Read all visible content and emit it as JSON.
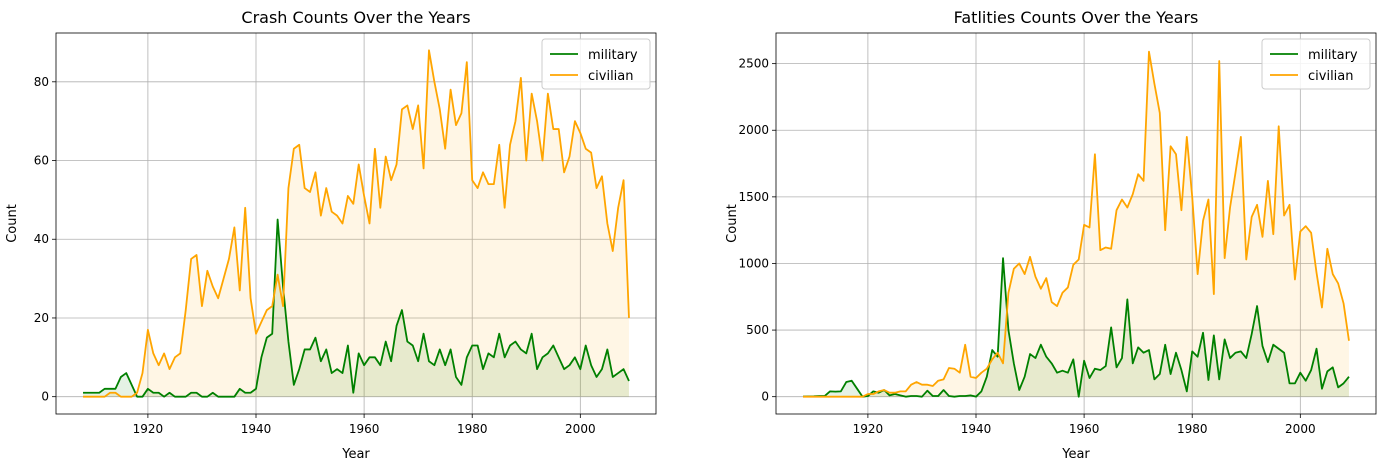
{
  "colors": {
    "military": "#008000",
    "civilian": "#FFA500",
    "grid": "#b0b0b0"
  },
  "chart_data": [
    {
      "type": "line",
      "title": "Crash Counts Over the Years",
      "xlabel": "Year",
      "ylabel": "Count",
      "xlim": [
        1903,
        2014
      ],
      "ylim": [
        -4.4,
        92.4
      ],
      "xticks": [
        1920,
        1940,
        1960,
        1980,
        2000
      ],
      "yticks": [
        0,
        20,
        40,
        60,
        80
      ],
      "grid": true,
      "fill_under": true,
      "legend_position": "top-right",
      "legend": [
        "military",
        "civilian"
      ],
      "x": [
        1908,
        1909,
        1910,
        1911,
        1912,
        1913,
        1914,
        1915,
        1916,
        1917,
        1918,
        1919,
        1920,
        1921,
        1922,
        1923,
        1924,
        1925,
        1926,
        1927,
        1928,
        1929,
        1930,
        1931,
        1932,
        1933,
        1934,
        1935,
        1936,
        1937,
        1938,
        1939,
        1940,
        1941,
        1942,
        1943,
        1944,
        1945,
        1946,
        1947,
        1948,
        1949,
        1950,
        1951,
        1952,
        1953,
        1954,
        1955,
        1956,
        1957,
        1958,
        1959,
        1960,
        1961,
        1962,
        1963,
        1964,
        1965,
        1966,
        1967,
        1968,
        1969,
        1970,
        1971,
        1972,
        1973,
        1974,
        1975,
        1976,
        1977,
        1978,
        1979,
        1980,
        1981,
        1982,
        1983,
        1984,
        1985,
        1986,
        1987,
        1988,
        1989,
        1990,
        1991,
        1992,
        1993,
        1994,
        1995,
        1996,
        1997,
        1998,
        1999,
        2000,
        2001,
        2002,
        2003,
        2004,
        2005,
        2006,
        2007,
        2008,
        2009
      ],
      "series": [
        {
          "name": "military",
          "values": [
            1,
            1,
            1,
            1,
            2,
            2,
            2,
            5,
            6,
            3,
            0,
            0,
            2,
            1,
            1,
            0,
            1,
            0,
            0,
            0,
            1,
            1,
            0,
            0,
            1,
            0,
            0,
            0,
            0,
            2,
            1,
            1,
            2,
            10,
            15,
            16,
            45,
            28,
            14,
            3,
            7,
            12,
            12,
            15,
            9,
            12,
            6,
            7,
            6,
            13,
            1,
            11,
            8,
            10,
            10,
            8,
            14,
            9,
            18,
            22,
            14,
            13,
            9,
            16,
            9,
            8,
            12,
            8,
            12,
            5,
            3,
            10,
            13,
            13,
            7,
            11,
            10,
            16,
            10,
            13,
            14,
            12,
            11,
            16,
            7,
            10,
            11,
            13,
            10,
            7,
            8,
            10,
            7,
            13,
            8,
            5,
            7,
            12,
            5,
            6,
            7,
            4
          ]
        },
        {
          "name": "civilian",
          "values": [
            0,
            0,
            0,
            0,
            0,
            1,
            1,
            0,
            0,
            0,
            1,
            6,
            17,
            11,
            8,
            11,
            7,
            10,
            11,
            22,
            35,
            36,
            23,
            32,
            28,
            25,
            30,
            35,
            43,
            27,
            48,
            25,
            16,
            19,
            22,
            23,
            31,
            23,
            53,
            63,
            64,
            53,
            52,
            57,
            46,
            53,
            47,
            46,
            44,
            51,
            49,
            59,
            51,
            44,
            63,
            48,
            61,
            55,
            59,
            73,
            74,
            68,
            74,
            58,
            88,
            80,
            73,
            63,
            78,
            69,
            72,
            85,
            55,
            53,
            57,
            54,
            54,
            64,
            48,
            64,
            70,
            81,
            60,
            77,
            70,
            60,
            77,
            68,
            68,
            57,
            61,
            70,
            67,
            63,
            62,
            53,
            56,
            44,
            37,
            48,
            55,
            20
          ]
        }
      ]
    },
    {
      "type": "line",
      "title": "Fatlities Counts Over the Years",
      "xlabel": "Year",
      "ylabel": "Count",
      "xlim": [
        1903,
        2014
      ],
      "ylim": [
        -130,
        2730
      ],
      "xticks": [
        1920,
        1940,
        1960,
        1980,
        2000
      ],
      "yticks": [
        0,
        500,
        1000,
        1500,
        2000,
        2500
      ],
      "grid": true,
      "fill_under": true,
      "legend_position": "top-right",
      "legend": [
        "military",
        "civilian"
      ],
      "x": [
        1908,
        1909,
        1910,
        1911,
        1912,
        1913,
        1914,
        1915,
        1916,
        1917,
        1918,
        1919,
        1920,
        1921,
        1922,
        1923,
        1924,
        1925,
        1926,
        1927,
        1928,
        1929,
        1930,
        1931,
        1932,
        1933,
        1934,
        1935,
        1936,
        1937,
        1938,
        1939,
        1940,
        1941,
        1942,
        1943,
        1944,
        1945,
        1946,
        1947,
        1948,
        1949,
        1950,
        1951,
        1952,
        1953,
        1954,
        1955,
        1956,
        1957,
        1958,
        1959,
        1960,
        1961,
        1962,
        1963,
        1964,
        1965,
        1966,
        1967,
        1968,
        1969,
        1970,
        1971,
        1972,
        1973,
        1974,
        1975,
        1976,
        1977,
        1978,
        1979,
        1980,
        1981,
        1982,
        1983,
        1984,
        1985,
        1986,
        1987,
        1988,
        1989,
        1990,
        1991,
        1992,
        1993,
        1994,
        1995,
        1996,
        1997,
        1998,
        1999,
        2000,
        2001,
        2002,
        2003,
        2004,
        2005,
        2006,
        2007,
        2008,
        2009
      ],
      "series": [
        {
          "name": "military",
          "values": [
            1,
            2,
            3,
            5,
            5,
            40,
            38,
            40,
            110,
            120,
            60,
            0,
            5,
            40,
            30,
            50,
            10,
            20,
            10,
            0,
            5,
            5,
            0,
            45,
            5,
            5,
            50,
            5,
            0,
            5,
            5,
            10,
            0,
            40,
            150,
            350,
            300,
            1040,
            500,
            250,
            50,
            150,
            320,
            290,
            390,
            300,
            250,
            180,
            195,
            180,
            280,
            0,
            270,
            140,
            210,
            200,
            230,
            520,
            220,
            290,
            730,
            250,
            370,
            330,
            350,
            130,
            170,
            390,
            170,
            330,
            200,
            40,
            340,
            300,
            480,
            125,
            460,
            130,
            430,
            290,
            330,
            340,
            290,
            470,
            680,
            380,
            260,
            390,
            360,
            330,
            100,
            100,
            180,
            120,
            200,
            360,
            60,
            190,
            220,
            70,
            100,
            150
          ]
        },
        {
          "name": "civilian",
          "values": [
            0,
            0,
            0,
            0,
            0,
            0,
            0,
            0,
            0,
            0,
            0,
            0,
            20,
            20,
            40,
            50,
            30,
            30,
            40,
            40,
            90,
            110,
            90,
            90,
            80,
            120,
            130,
            215,
            210,
            180,
            390,
            150,
            140,
            180,
            210,
            280,
            330,
            250,
            780,
            960,
            1000,
            920,
            1050,
            900,
            810,
            890,
            710,
            680,
            780,
            820,
            990,
            1030,
            1290,
            1270,
            1820,
            1100,
            1120,
            1110,
            1400,
            1480,
            1420,
            1520,
            1670,
            1620,
            2590,
            2350,
            2130,
            1250,
            1880,
            1820,
            1400,
            1950,
            1500,
            920,
            1320,
            1480,
            770,
            2520,
            1040,
            1420,
            1680,
            1950,
            1030,
            1350,
            1440,
            1200,
            1620,
            1220,
            2030,
            1360,
            1440,
            880,
            1240,
            1280,
            1230,
            930,
            670,
            1110,
            920,
            850,
            700,
            420
          ]
        }
      ]
    }
  ]
}
